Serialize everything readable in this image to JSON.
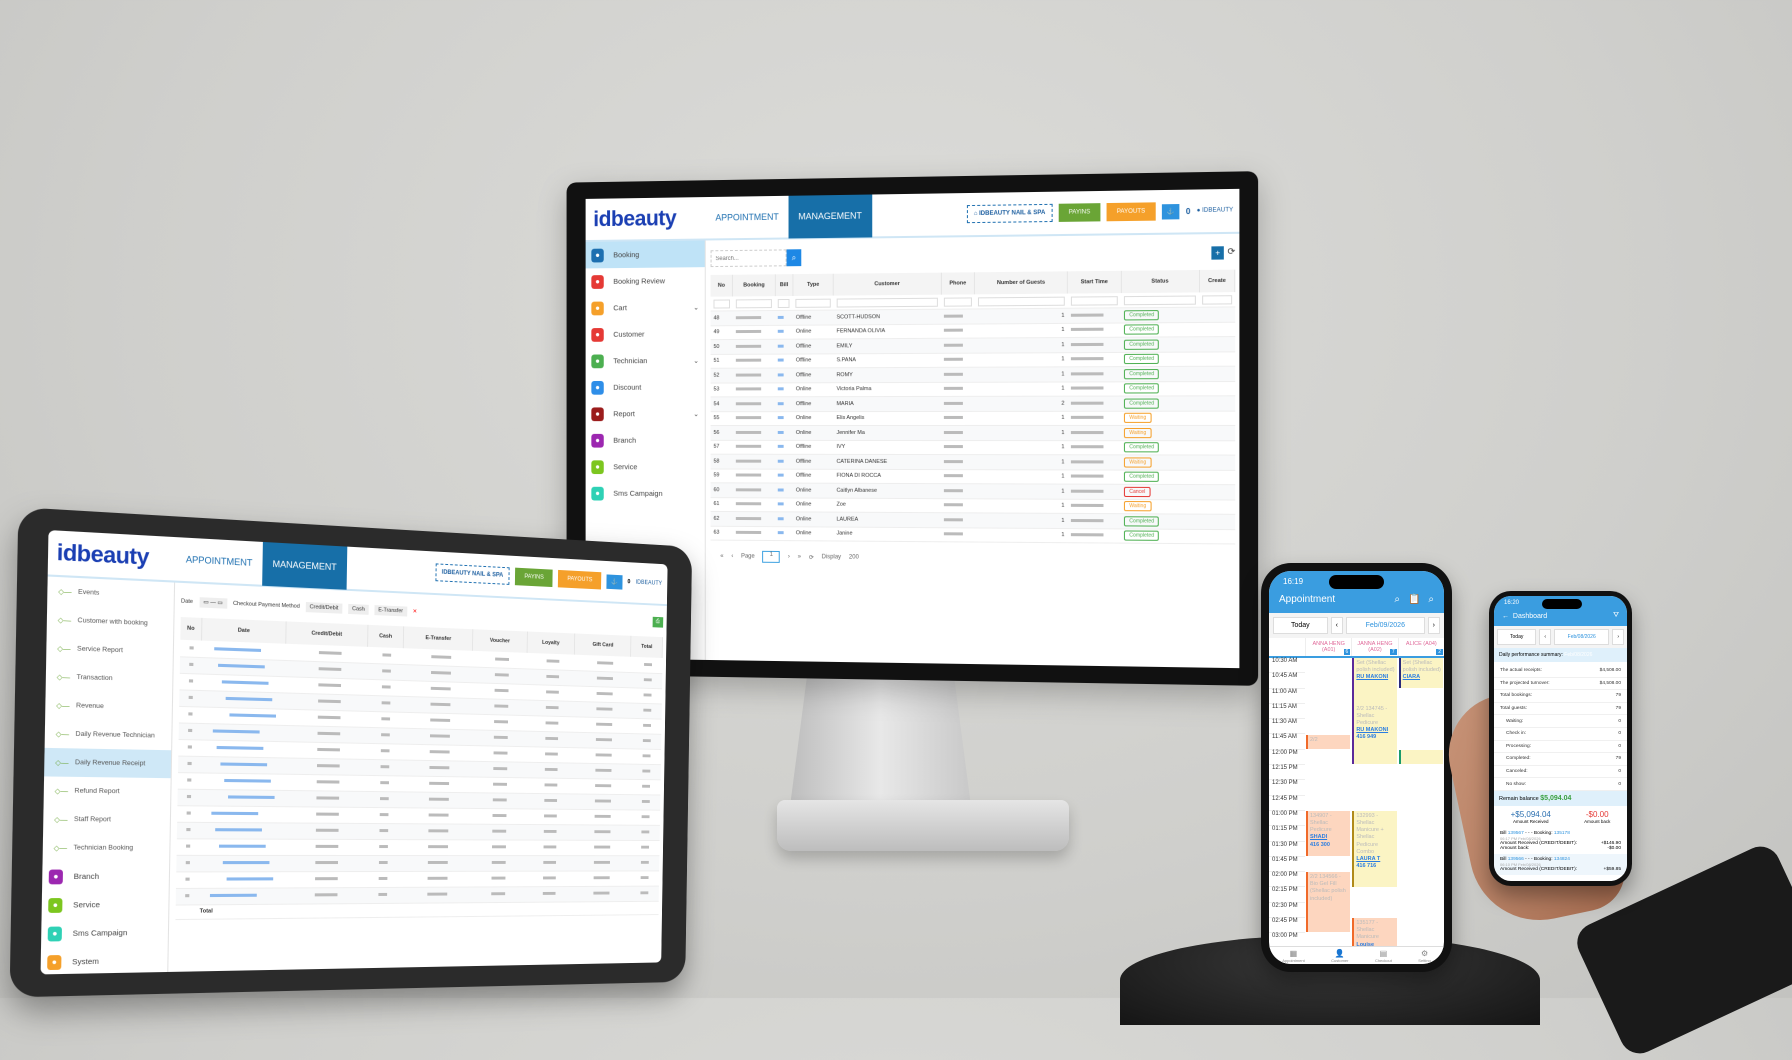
{
  "app": {
    "logo": "idbeauty",
    "tabs": [
      "APPOINTMENT",
      "MANAGEMENT"
    ],
    "store": "IDBEAUTY NAIL & SPA",
    "green_button": "PAYINS",
    "orange_button": "PAYOUTS",
    "notif_count": "0",
    "user": "IDBEAUTY"
  },
  "colors": {
    "primary": "#176fa8",
    "accent": "#1e88e5",
    "green": "#6aa536",
    "orange": "#f5a02a",
    "completed": "#4caf50",
    "waiting": "#f5a02a",
    "cancel": "#e53935"
  },
  "monitor": {
    "sidebar": [
      {
        "label": "Booking",
        "icon": "booking-icon",
        "color": "#1d6fb0",
        "active": true
      },
      {
        "label": "Booking Review",
        "icon": "review-icon",
        "color": "#e53935"
      },
      {
        "label": "Cart",
        "icon": "cart-icon",
        "color": "#f5a02a",
        "expand": true
      },
      {
        "label": "Customer",
        "icon": "customer-icon",
        "color": "#e53935"
      },
      {
        "label": "Technician",
        "icon": "technician-icon",
        "color": "#4caf50",
        "expand": true
      },
      {
        "label": "Discount",
        "icon": "discount-icon",
        "color": "#2e8ee8"
      },
      {
        "label": "Report",
        "icon": "report-icon",
        "color": "#9b1c1c",
        "expand": true
      },
      {
        "label": "Branch",
        "icon": "branch-icon",
        "color": "#9c27b0"
      },
      {
        "label": "Service",
        "icon": "service-icon",
        "color": "#7cc61f"
      },
      {
        "label": "Sms Campaign",
        "icon": "sms-icon",
        "color": "#2ed1b5"
      }
    ],
    "search_placeholder": "Search...",
    "columns": [
      "No",
      "Booking",
      "Bill",
      "Type",
      "Customer",
      "Phone",
      "Number of Guests",
      "Start Time",
      "Status",
      "Create"
    ],
    "rows": [
      {
        "no": "48",
        "type": "Offline",
        "customer": "SCOTT-HUDSON",
        "guests": "1",
        "status": "Completed"
      },
      {
        "no": "49",
        "type": "Online",
        "customer": "FERNANDA OLIVIA",
        "guests": "1",
        "status": "Completed"
      },
      {
        "no": "50",
        "type": "Offline",
        "customer": "EMILY",
        "guests": "1",
        "status": "Completed"
      },
      {
        "no": "51",
        "type": "Offline",
        "customer": "S.PANA",
        "guests": "1",
        "status": "Completed"
      },
      {
        "no": "52",
        "type": "Offline",
        "customer": "ROMY",
        "guests": "1",
        "status": "Completed"
      },
      {
        "no": "53",
        "type": "Online",
        "customer": "Victoria Palma",
        "guests": "1",
        "status": "Completed"
      },
      {
        "no": "54",
        "type": "Offline",
        "customer": "MARIA",
        "guests": "2",
        "status": "Completed"
      },
      {
        "no": "55",
        "type": "Online",
        "customer": "Elis Angelis",
        "guests": "1",
        "status": "Waiting"
      },
      {
        "no": "56",
        "type": "Online",
        "customer": "Jennifer Ma",
        "guests": "1",
        "status": "Waiting"
      },
      {
        "no": "57",
        "type": "Offline",
        "customer": "IVY",
        "guests": "1",
        "status": "Completed"
      },
      {
        "no": "58",
        "type": "Offline",
        "customer": "CATERINA DANESE",
        "guests": "1",
        "status": "Waiting"
      },
      {
        "no": "59",
        "type": "Offline",
        "customer": "FIONA DI ROCCA",
        "guests": "1",
        "status": "Completed"
      },
      {
        "no": "60",
        "type": "Online",
        "customer": "Caitlyn Albanese",
        "guests": "1",
        "status": "Cancel"
      },
      {
        "no": "61",
        "type": "Online",
        "customer": "Zoe",
        "guests": "1",
        "status": "Waiting"
      },
      {
        "no": "62",
        "type": "Online",
        "customer": "LAUREA",
        "guests": "1",
        "status": "Completed"
      },
      {
        "no": "63",
        "type": "Online",
        "customer": "Janine",
        "guests": "1",
        "status": "Completed"
      }
    ],
    "pager": {
      "page_label": "Page",
      "page": "1",
      "display_label": "Display",
      "display": "200"
    }
  },
  "tablet": {
    "tree": [
      "Events",
      "Customer with booking",
      "Service Report",
      "Transaction",
      "Revenue",
      "Daily Revenue Technician",
      "Daily Revenue Receipt",
      "Refund Report",
      "Staff Report",
      "Technician Booking"
    ],
    "active_index": 6,
    "sidebar_bottom": [
      {
        "label": "Branch",
        "color": "#9c27b0",
        "icon": "branch-icon"
      },
      {
        "label": "Service",
        "color": "#7cc61f",
        "icon": "service-icon"
      },
      {
        "label": "Sms Campaign",
        "color": "#2ed1b5",
        "icon": "sms-icon"
      },
      {
        "label": "System",
        "color": "#f5a02a",
        "icon": "system-icon"
      }
    ],
    "filter": {
      "date_label": "Date",
      "checkout_label": "Checkout Payment Method",
      "chips": [
        "Credit/Debit",
        "Cash",
        "E-Transfer"
      ]
    },
    "columns": [
      "No",
      "Date",
      "Credit/Debit",
      "Cash",
      "E-Transfer",
      "Voucher",
      "Loyalty",
      "Gift Card",
      "Total"
    ],
    "total_label": "Total"
  },
  "phone1": {
    "time": "16:19",
    "title": "Appointment",
    "today": "Today",
    "date": "Feb/09/2026",
    "staff": [
      {
        "name": "ANNA HENG (A01)",
        "count": "6"
      },
      {
        "name": "JANNA HENG (A02)",
        "count": "7"
      },
      {
        "name": "ALICE (A04)",
        "count": "2"
      }
    ],
    "times": [
      "10:30 AM",
      "10:45 AM",
      "11:00 AM",
      "11:15 AM",
      "11:30 AM",
      "11:45 AM",
      "12:00 PM",
      "12:15 PM",
      "12:30 PM",
      "12:45 PM",
      "01:00 PM",
      "01:15 PM",
      "01:30 PM",
      "01:45 PM",
      "02:00 PM",
      "02:15 PM",
      "02:30 PM",
      "02:45 PM",
      "03:00 PM"
    ],
    "appointments": [
      {
        "col": 1,
        "start": 0,
        "len": 6,
        "text": "Set (Shellac polish included)",
        "name": "RU MAKONI",
        "phone": "",
        "bg": "#fbf4c4",
        "bar": "#5b2a9a"
      },
      {
        "col": 1,
        "start": 3,
        "len": 4,
        "text": "2/2 134745 - Shellac Pedicure",
        "name": "RU MAKONI",
        "phone": "416 949",
        "bg": "#fbf4c4",
        "bar": "#5b2a9a"
      },
      {
        "col": 2,
        "start": 0,
        "len": 2,
        "text": "Set (Shellac polish included)",
        "name": "CIARA",
        "phone": "",
        "bg": "#fbf4c4",
        "bar": "#2a2a7a"
      },
      {
        "col": 0,
        "start": 5,
        "len": 1,
        "text": "2/2",
        "name": "",
        "phone": "",
        "bg": "#fdd6bf",
        "bar": "#f06a2a"
      },
      {
        "col": 2,
        "start": 6,
        "len": 1,
        "text": "",
        "name": "",
        "phone": "",
        "bg": "#fbf4c4",
        "bar": "#1a9a6a"
      },
      {
        "col": 0,
        "start": 10,
        "len": 3,
        "text": "134907 - Shellac Pedicure",
        "name": "SHADI",
        "phone": "416 300",
        "bg": "#fdd6bf",
        "bar": "#f06a2a"
      },
      {
        "col": 1,
        "start": 10,
        "len": 5,
        "text": "132993 - Shellac Manicure + Shellac Pedicure Combo",
        "name": "LAURA T",
        "phone": "416 716",
        "bg": "#fbf4c4",
        "bar": "#b08a1a"
      },
      {
        "col": 0,
        "start": 14,
        "len": 4,
        "text": "2/2 134566 - Bio Gel Fill (Shellac polish included)",
        "name": "",
        "phone": "",
        "bg": "#fdd6bf",
        "bar": "#f06a2a"
      },
      {
        "col": 1,
        "start": 17,
        "len": 3,
        "text": "135177 - Shellac Manicure",
        "name": "Louise",
        "phone": "",
        "bg": "#fdd6bf",
        "bar": "#f06a2a"
      }
    ],
    "nav": [
      "Appointment",
      "Customer",
      "Checkout",
      "Setting"
    ]
  },
  "phone2": {
    "time": "16:20",
    "title": "Dashboard",
    "today": "Today",
    "date": "Feb/08/2026",
    "summary_title": "Daily performance summary:",
    "summary_date": "Feb/08/2026",
    "rows": [
      {
        "label": "The actual receipts:",
        "value": "$4,508.00"
      },
      {
        "label": "The projected turnover:",
        "value": "$4,508.00"
      },
      {
        "label": "Total bookings:",
        "value": "79"
      },
      {
        "label": "Total guests:",
        "value": "79"
      },
      {
        "label": "Waiting:",
        "value": "0",
        "indent": true
      },
      {
        "label": "Check in:",
        "value": "0",
        "indent": true
      },
      {
        "label": "Processing:",
        "value": "0",
        "indent": true
      },
      {
        "label": "Completed:",
        "value": "79",
        "indent": true
      },
      {
        "label": "Canceled:",
        "value": "0",
        "indent": true
      },
      {
        "label": "No show:",
        "value": "0",
        "indent": true
      }
    ],
    "remain_label": "Remain balance",
    "remain_value": "$5,094.04",
    "received": "+$5,094.04",
    "received_label": "Amount Received",
    "back": "-$0.00",
    "back_label": "Amount back",
    "bills": [
      {
        "bill_label": "Bill",
        "bill": "139567",
        "booking_label": "- - - Booking:",
        "booking": "135178",
        "time": "06:17 PM Feb/08/2026",
        "recv_label": "Amount Received (CREDIT/DEBIT):",
        "recv": "+$146.90",
        "back_label": "Amount back:",
        "back": "-$0.00"
      },
      {
        "bill_label": "Bill",
        "bill": "139566",
        "booking_label": "- - - Booking:",
        "booking": "134824",
        "time": "06:10 PM Feb/08/2026",
        "recv_label": "Amount Received (CREDIT/DEBIT):",
        "recv": "+$59.85"
      }
    ]
  }
}
